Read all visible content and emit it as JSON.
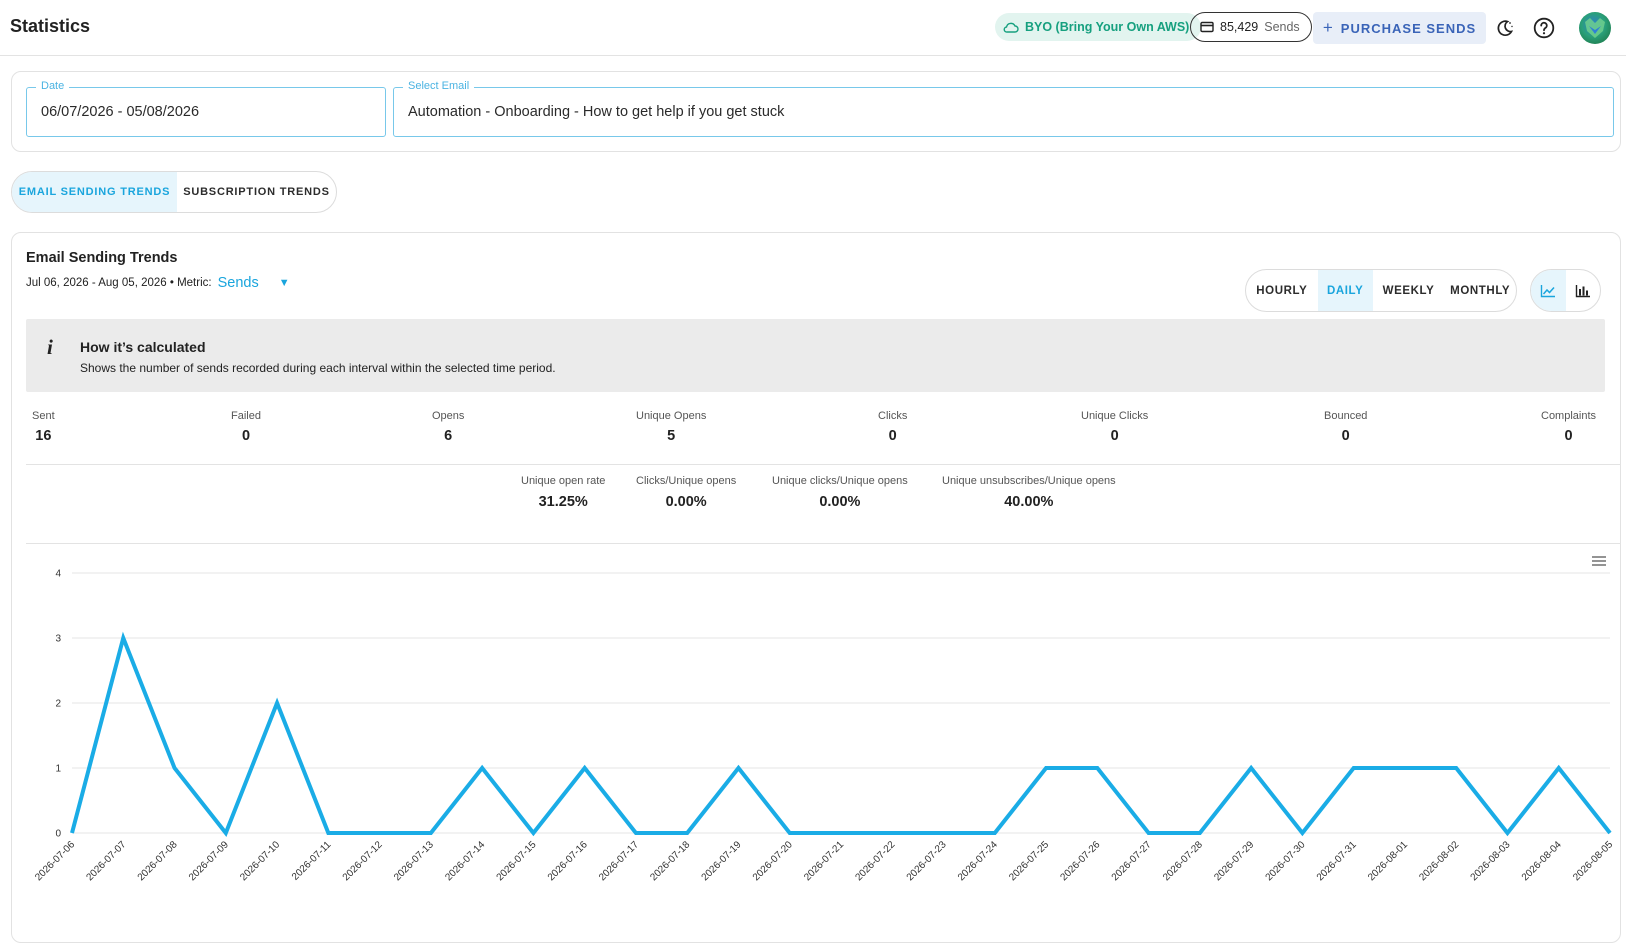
{
  "header": {
    "title": "Statistics",
    "byo_label": "BYO (Bring Your Own AWS)",
    "sends_count": "85,429",
    "sends_label": "Sends",
    "purchase_label": "PURCHASE SENDS"
  },
  "filters": {
    "date_label": "Date",
    "date_value": "06/07/2026 - 05/08/2026",
    "email_label": "Select Email",
    "email_value": "Automation - Onboarding - How to get help if you get stuck"
  },
  "tabs": [
    {
      "label": "EMAIL SENDING TRENDS",
      "active": true
    },
    {
      "label": "SUBSCRIPTION TRENDS",
      "active": false
    }
  ],
  "trends": {
    "title": "Email Sending Trends",
    "range": "Jul 06, 2026 - Aug 05, 2026 • Metric:",
    "metric": "Sends",
    "intervals": [
      {
        "label": "HOURLY",
        "active": false
      },
      {
        "label": "DAILY",
        "active": true
      },
      {
        "label": "WEEKLY",
        "active": false
      },
      {
        "label": "MONTHLY",
        "active": false
      }
    ],
    "view_modes": [
      {
        "icon": "line-chart-icon",
        "active": true
      },
      {
        "icon": "bar-chart-icon",
        "active": false
      }
    ],
    "info": {
      "icon": "info-icon",
      "title": "How it’s calculated",
      "description": "Shows the number of sends recorded during each interval within the selected time period."
    }
  },
  "stats": [
    {
      "label": "Sent",
      "value": "16"
    },
    {
      "label": "Failed",
      "value": "0"
    },
    {
      "label": "Opens",
      "value": "6"
    },
    {
      "label": "Unique Opens",
      "value": "5"
    },
    {
      "label": "Clicks",
      "value": "0"
    },
    {
      "label": "Unique Clicks",
      "value": "0"
    },
    {
      "label": "Bounced",
      "value": "0"
    },
    {
      "label": "Complaints",
      "value": "0"
    }
  ],
  "rates": [
    {
      "label": "Unique open rate",
      "value": "31.25%"
    },
    {
      "label": "Clicks/Unique opens",
      "value": "0.00%"
    },
    {
      "label": "Unique clicks/Unique opens",
      "value": "0.00%"
    },
    {
      "label": "Unique unsubscribes/Unique opens",
      "value": "40.00%"
    }
  ],
  "colors": {
    "accent": "#1aa5dd",
    "line": "#1aace6",
    "byo_text": "#16a07f",
    "byo_bg": "#e2f4ef",
    "purchase_text": "#3a64b8",
    "info_bg": "#ebebeb"
  },
  "chart_data": {
    "type": "line",
    "x": [
      "2026-07-06",
      "2026-07-07",
      "2026-07-08",
      "2026-07-09",
      "2026-07-10",
      "2026-07-11",
      "2026-07-12",
      "2026-07-13",
      "2026-07-14",
      "2026-07-15",
      "2026-07-16",
      "2026-07-17",
      "2026-07-18",
      "2026-07-19",
      "2026-07-20",
      "2026-07-21",
      "2026-07-22",
      "2026-07-23",
      "2026-07-24",
      "2026-07-25",
      "2026-07-26",
      "2026-07-27",
      "2026-07-28",
      "2026-07-29",
      "2026-07-30",
      "2026-07-31",
      "2026-08-01",
      "2026-08-02",
      "2026-08-03",
      "2026-08-04",
      "2026-08-05"
    ],
    "values": [
      0,
      3,
      1,
      0,
      2,
      0,
      0,
      0,
      1,
      0,
      1,
      0,
      0,
      1,
      0,
      0,
      0,
      0,
      0,
      1,
      1,
      0,
      0,
      1,
      0,
      1,
      1,
      1,
      0,
      1,
      0
    ],
    "ylim": [
      0,
      4
    ],
    "yticks": [
      "0",
      "1",
      "2",
      "3",
      "4"
    ],
    "grid": true,
    "legend": "none"
  }
}
